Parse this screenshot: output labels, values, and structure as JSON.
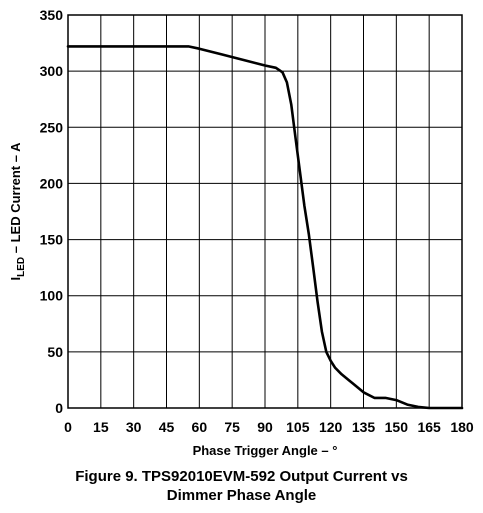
{
  "chart_data": {
    "type": "line",
    "title": "Figure 9. TPS92010EVM-592 Output Current vs Dimmer Phase Angle",
    "title_lines": [
      "Figure 9. TPS92010EVM-592 Output Current vs",
      "Dimmer Phase Angle"
    ],
    "xlabel": "Phase Trigger Angle – °",
    "ylabel_parts": {
      "prefix": "I",
      "subscript": "LED",
      "rest": " – LED Current – A"
    },
    "xlim": [
      0,
      180
    ],
    "ylim": [
      0,
      350
    ],
    "xticks": [
      0,
      15,
      30,
      45,
      60,
      75,
      90,
      105,
      120,
      135,
      150,
      165,
      180
    ],
    "yticks": [
      0,
      50,
      100,
      150,
      200,
      250,
      300,
      350
    ],
    "grid": true,
    "series": [
      {
        "x": [
          0,
          10,
          20,
          30,
          40,
          50,
          55,
          60,
          70,
          80,
          90,
          95,
          98,
          100,
          102,
          104,
          106,
          108,
          110,
          112,
          114,
          116,
          118,
          120,
          122,
          125,
          130,
          135,
          140,
          145,
          150,
          155,
          160,
          165,
          170,
          175,
          180
        ],
        "y": [
          322,
          322,
          322,
          322,
          322,
          322,
          322,
          320,
          315,
          310,
          305,
          303,
          299,
          290,
          270,
          240,
          210,
          180,
          155,
          125,
          95,
          68,
          50,
          42,
          36,
          30,
          22,
          14,
          9,
          9,
          7,
          3,
          1,
          0,
          0,
          0,
          0
        ],
        "color": "#000000"
      }
    ]
  }
}
